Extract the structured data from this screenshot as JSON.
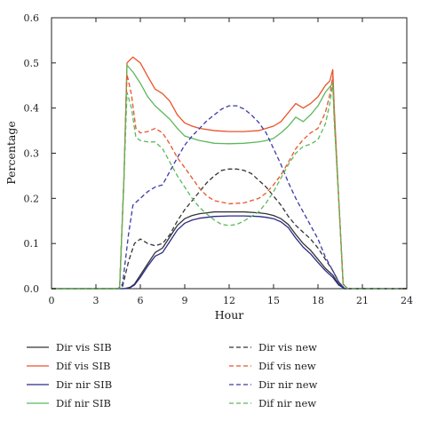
{
  "chart_data": {
    "type": "line",
    "xlabel": "Hour",
    "ylabel": "Percentage",
    "xlim": [
      0,
      24
    ],
    "ylim": [
      0,
      0.6
    ],
    "xticks": [
      0,
      3,
      6,
      9,
      12,
      15,
      18,
      21,
      24
    ],
    "yticks": [
      0.0,
      0.1,
      0.2,
      0.3,
      0.4,
      0.5,
      0.6
    ],
    "ytick_labels": [
      "0.0",
      "0.1",
      "0.2",
      "0.3",
      "0.4",
      "0.5",
      "0.6"
    ],
    "grid": false,
    "legend_placement": "bottom, outside",
    "series": [
      {
        "name": "Dir vis SIB",
        "color": "#333333",
        "dash": "solid",
        "points": [
          [
            0,
            0
          ],
          [
            4.5,
            0
          ],
          [
            4.9,
            0
          ],
          [
            5.3,
            0.003
          ],
          [
            5.6,
            0.01
          ],
          [
            6,
            0.03
          ],
          [
            6.5,
            0.055
          ],
          [
            7,
            0.08
          ],
          [
            7.5,
            0.09
          ],
          [
            8,
            0.115
          ],
          [
            8.5,
            0.14
          ],
          [
            9,
            0.155
          ],
          [
            9.5,
            0.162
          ],
          [
            10,
            0.166
          ],
          [
            10.5,
            0.168
          ],
          [
            11,
            0.17
          ],
          [
            12,
            0.17
          ],
          [
            13,
            0.17
          ],
          [
            14,
            0.168
          ],
          [
            14.5,
            0.166
          ],
          [
            15,
            0.162
          ],
          [
            15.5,
            0.155
          ],
          [
            16,
            0.142
          ],
          [
            16.5,
            0.12
          ],
          [
            17,
            0.1
          ],
          [
            17.5,
            0.085
          ],
          [
            18,
            0.065
          ],
          [
            18.5,
            0.045
          ],
          [
            19,
            0.03
          ],
          [
            19.4,
            0.01
          ],
          [
            19.8,
            0
          ],
          [
            24,
            0
          ]
        ]
      },
      {
        "name": "Dif vis SIB",
        "color": "#e8542a",
        "dash": "solid",
        "points": [
          [
            0,
            0
          ],
          [
            4.6,
            0
          ],
          [
            4.9,
            0.25
          ],
          [
            5.1,
            0.5
          ],
          [
            5.5,
            0.513
          ],
          [
            6,
            0.5
          ],
          [
            6.5,
            0.47
          ],
          [
            7,
            0.442
          ],
          [
            7.5,
            0.432
          ],
          [
            8,
            0.415
          ],
          [
            8.5,
            0.385
          ],
          [
            9,
            0.367
          ],
          [
            9.5,
            0.36
          ],
          [
            10,
            0.355
          ],
          [
            11,
            0.35
          ],
          [
            12,
            0.348
          ],
          [
            13,
            0.348
          ],
          [
            14,
            0.35
          ],
          [
            14.5,
            0.355
          ],
          [
            15,
            0.36
          ],
          [
            15.5,
            0.37
          ],
          [
            16,
            0.39
          ],
          [
            16.5,
            0.41
          ],
          [
            17,
            0.4
          ],
          [
            17.5,
            0.41
          ],
          [
            18,
            0.425
          ],
          [
            18.5,
            0.45
          ],
          [
            18.8,
            0.46
          ],
          [
            19,
            0.485
          ],
          [
            19.1,
            0.4
          ],
          [
            19.4,
            0.2
          ],
          [
            19.7,
            0.01
          ],
          [
            20,
            0
          ],
          [
            24,
            0
          ]
        ]
      },
      {
        "name": "Dir nir SIB",
        "color": "#2a2a8a",
        "dash": "solid",
        "points": [
          [
            0,
            0
          ],
          [
            4.5,
            0
          ],
          [
            4.9,
            0
          ],
          [
            5.3,
            0.002
          ],
          [
            5.6,
            0.008
          ],
          [
            6,
            0.025
          ],
          [
            6.5,
            0.05
          ],
          [
            7,
            0.072
          ],
          [
            7.5,
            0.08
          ],
          [
            8,
            0.105
          ],
          [
            8.5,
            0.13
          ],
          [
            9,
            0.145
          ],
          [
            9.5,
            0.152
          ],
          [
            10,
            0.156
          ],
          [
            11,
            0.16
          ],
          [
            12,
            0.161
          ],
          [
            13,
            0.161
          ],
          [
            14,
            0.16
          ],
          [
            14.5,
            0.158
          ],
          [
            15,
            0.155
          ],
          [
            15.5,
            0.148
          ],
          [
            16,
            0.135
          ],
          [
            16.5,
            0.112
          ],
          [
            17,
            0.092
          ],
          [
            17.5,
            0.077
          ],
          [
            18,
            0.058
          ],
          [
            18.5,
            0.04
          ],
          [
            19,
            0.025
          ],
          [
            19.4,
            0.008
          ],
          [
            19.8,
            0
          ],
          [
            24,
            0
          ]
        ]
      },
      {
        "name": "Dif nir SIB",
        "color": "#5cb85c",
        "dash": "solid",
        "points": [
          [
            0,
            0
          ],
          [
            4.6,
            0
          ],
          [
            4.9,
            0.25
          ],
          [
            5.1,
            0.495
          ],
          [
            5.5,
            0.48
          ],
          [
            6,
            0.455
          ],
          [
            6.5,
            0.425
          ],
          [
            7,
            0.405
          ],
          [
            7.5,
            0.39
          ],
          [
            8,
            0.375
          ],
          [
            8.5,
            0.355
          ],
          [
            9,
            0.338
          ],
          [
            9.5,
            0.333
          ],
          [
            10,
            0.328
          ],
          [
            11,
            0.322
          ],
          [
            12,
            0.321
          ],
          [
            13,
            0.322
          ],
          [
            14,
            0.325
          ],
          [
            14.5,
            0.328
          ],
          [
            15,
            0.333
          ],
          [
            15.5,
            0.345
          ],
          [
            16,
            0.36
          ],
          [
            16.5,
            0.38
          ],
          [
            17,
            0.37
          ],
          [
            17.5,
            0.385
          ],
          [
            18,
            0.405
          ],
          [
            18.5,
            0.435
          ],
          [
            19,
            0.455
          ],
          [
            19.1,
            0.38
          ],
          [
            19.4,
            0.2
          ],
          [
            19.7,
            0.01
          ],
          [
            20,
            0
          ],
          [
            24,
            0
          ]
        ]
      },
      {
        "name": "Dir vis new",
        "color": "#333333",
        "dash": "dashed",
        "points": [
          [
            0,
            0
          ],
          [
            4.5,
            0
          ],
          [
            4.8,
            0.005
          ],
          [
            5.2,
            0.06
          ],
          [
            5.6,
            0.1
          ],
          [
            6,
            0.11
          ],
          [
            6.5,
            0.1
          ],
          [
            7,
            0.095
          ],
          [
            7.5,
            0.1
          ],
          [
            8,
            0.12
          ],
          [
            8.5,
            0.15
          ],
          [
            9,
            0.175
          ],
          [
            9.5,
            0.195
          ],
          [
            10,
            0.215
          ],
          [
            10.5,
            0.235
          ],
          [
            11,
            0.25
          ],
          [
            11.5,
            0.262
          ],
          [
            12,
            0.265
          ],
          [
            12.5,
            0.265
          ],
          [
            13,
            0.262
          ],
          [
            13.5,
            0.255
          ],
          [
            14,
            0.24
          ],
          [
            14.5,
            0.225
          ],
          [
            15,
            0.205
          ],
          [
            15.5,
            0.185
          ],
          [
            16,
            0.16
          ],
          [
            16.5,
            0.14
          ],
          [
            17,
            0.125
          ],
          [
            17.5,
            0.11
          ],
          [
            18,
            0.09
          ],
          [
            18.5,
            0.065
          ],
          [
            19,
            0.04
          ],
          [
            19.4,
            0.015
          ],
          [
            19.8,
            0
          ],
          [
            24,
            0
          ]
        ]
      },
      {
        "name": "Dif vis new",
        "color": "#e8542a",
        "dash": "dashed",
        "points": [
          [
            0,
            0
          ],
          [
            4.6,
            0
          ],
          [
            4.9,
            0.25
          ],
          [
            5.1,
            0.475
          ],
          [
            5.4,
            0.43
          ],
          [
            5.7,
            0.355
          ],
          [
            6,
            0.345
          ],
          [
            6.5,
            0.348
          ],
          [
            7,
            0.355
          ],
          [
            7.5,
            0.345
          ],
          [
            8,
            0.32
          ],
          [
            8.5,
            0.29
          ],
          [
            9,
            0.268
          ],
          [
            9.5,
            0.245
          ],
          [
            10,
            0.222
          ],
          [
            10.5,
            0.205
          ],
          [
            11,
            0.195
          ],
          [
            12,
            0.188
          ],
          [
            13,
            0.19
          ],
          [
            14,
            0.2
          ],
          [
            14.5,
            0.212
          ],
          [
            15,
            0.23
          ],
          [
            15.5,
            0.252
          ],
          [
            16,
            0.28
          ],
          [
            16.5,
            0.31
          ],
          [
            17,
            0.33
          ],
          [
            17.5,
            0.345
          ],
          [
            18,
            0.355
          ],
          [
            18.5,
            0.39
          ],
          [
            18.8,
            0.43
          ],
          [
            19,
            0.47
          ],
          [
            19.1,
            0.38
          ],
          [
            19.4,
            0.2
          ],
          [
            19.7,
            0.01
          ],
          [
            20,
            0
          ],
          [
            24,
            0
          ]
        ]
      },
      {
        "name": "Dir nir new",
        "color": "#3a3aa8",
        "dash": "dashed",
        "points": [
          [
            0,
            0
          ],
          [
            4.5,
            0
          ],
          [
            4.8,
            0.01
          ],
          [
            5.2,
            0.12
          ],
          [
            5.5,
            0.185
          ],
          [
            6,
            0.2
          ],
          [
            6.5,
            0.215
          ],
          [
            7,
            0.225
          ],
          [
            7.5,
            0.23
          ],
          [
            8,
            0.26
          ],
          [
            8.5,
            0.29
          ],
          [
            9,
            0.318
          ],
          [
            9.5,
            0.338
          ],
          [
            10,
            0.355
          ],
          [
            10.5,
            0.372
          ],
          [
            11,
            0.385
          ],
          [
            11.5,
            0.398
          ],
          [
            12,
            0.405
          ],
          [
            12.5,
            0.405
          ],
          [
            13,
            0.398
          ],
          [
            13.5,
            0.385
          ],
          [
            14,
            0.368
          ],
          [
            14.5,
            0.345
          ],
          [
            15,
            0.31
          ],
          [
            15.5,
            0.275
          ],
          [
            16,
            0.235
          ],
          [
            16.5,
            0.2
          ],
          [
            17,
            0.17
          ],
          [
            17.5,
            0.14
          ],
          [
            18,
            0.11
          ],
          [
            18.5,
            0.07
          ],
          [
            19,
            0.04
          ],
          [
            19.4,
            0.015
          ],
          [
            19.8,
            0
          ],
          [
            24,
            0
          ]
        ]
      },
      {
        "name": "Dif nir new",
        "color": "#5cb85c",
        "dash": "dashed",
        "points": [
          [
            0,
            0
          ],
          [
            4.6,
            0
          ],
          [
            4.9,
            0.25
          ],
          [
            5.1,
            0.435
          ],
          [
            5.4,
            0.4
          ],
          [
            5.7,
            0.335
          ],
          [
            6,
            0.328
          ],
          [
            6.5,
            0.325
          ],
          [
            7,
            0.325
          ],
          [
            7.5,
            0.31
          ],
          [
            8,
            0.28
          ],
          [
            8.5,
            0.25
          ],
          [
            9,
            0.225
          ],
          [
            9.5,
            0.2
          ],
          [
            10,
            0.18
          ],
          [
            10.5,
            0.165
          ],
          [
            11,
            0.152
          ],
          [
            11.5,
            0.142
          ],
          [
            12,
            0.14
          ],
          [
            12.5,
            0.142
          ],
          [
            13,
            0.15
          ],
          [
            14,
            0.17
          ],
          [
            14.5,
            0.19
          ],
          [
            15,
            0.215
          ],
          [
            15.5,
            0.245
          ],
          [
            16,
            0.275
          ],
          [
            16.5,
            0.3
          ],
          [
            17,
            0.315
          ],
          [
            17.5,
            0.32
          ],
          [
            18,
            0.33
          ],
          [
            18.5,
            0.365
          ],
          [
            18.8,
            0.41
          ],
          [
            19,
            0.455
          ],
          [
            19.1,
            0.37
          ],
          [
            19.4,
            0.2
          ],
          [
            19.7,
            0.01
          ],
          [
            20,
            0
          ],
          [
            24,
            0
          ]
        ]
      }
    ]
  }
}
